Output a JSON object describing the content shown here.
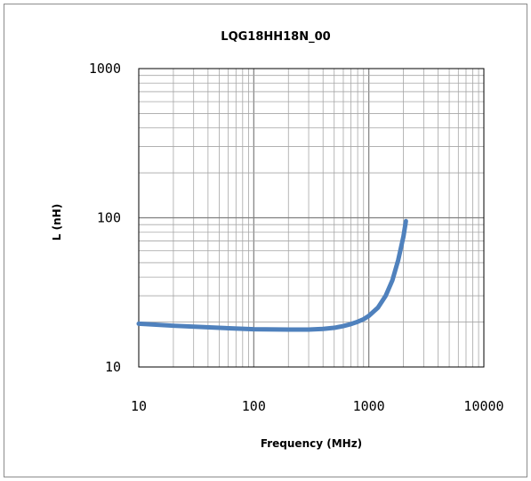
{
  "chart_data": {
    "type": "line",
    "title": "LQG18HH18N_00",
    "xlabel": "Frequency (MHz)",
    "ylabel": "L (nH)",
    "x_scale": "log",
    "y_scale": "log",
    "xlim": [
      10,
      10000
    ],
    "ylim": [
      10,
      1000
    ],
    "x_ticks": [
      "10",
      "100",
      "1000",
      "10000"
    ],
    "y_ticks": [
      "1000",
      "100",
      "10"
    ],
    "grid": true,
    "legend": "none",
    "series": [
      {
        "color": "#4f81bd",
        "x": [
          10,
          20,
          50,
          100,
          200,
          300,
          400,
          500,
          600,
          700,
          800,
          900,
          1000,
          1200,
          1400,
          1600,
          1800,
          2000,
          2100
        ],
        "y": [
          19.5,
          18.9,
          18.3,
          17.9,
          17.8,
          17.8,
          18.0,
          18.3,
          18.8,
          19.4,
          20.1,
          20.9,
          22.0,
          25.0,
          30.0,
          38.0,
          52.0,
          75.0,
          95.0
        ]
      }
    ]
  }
}
